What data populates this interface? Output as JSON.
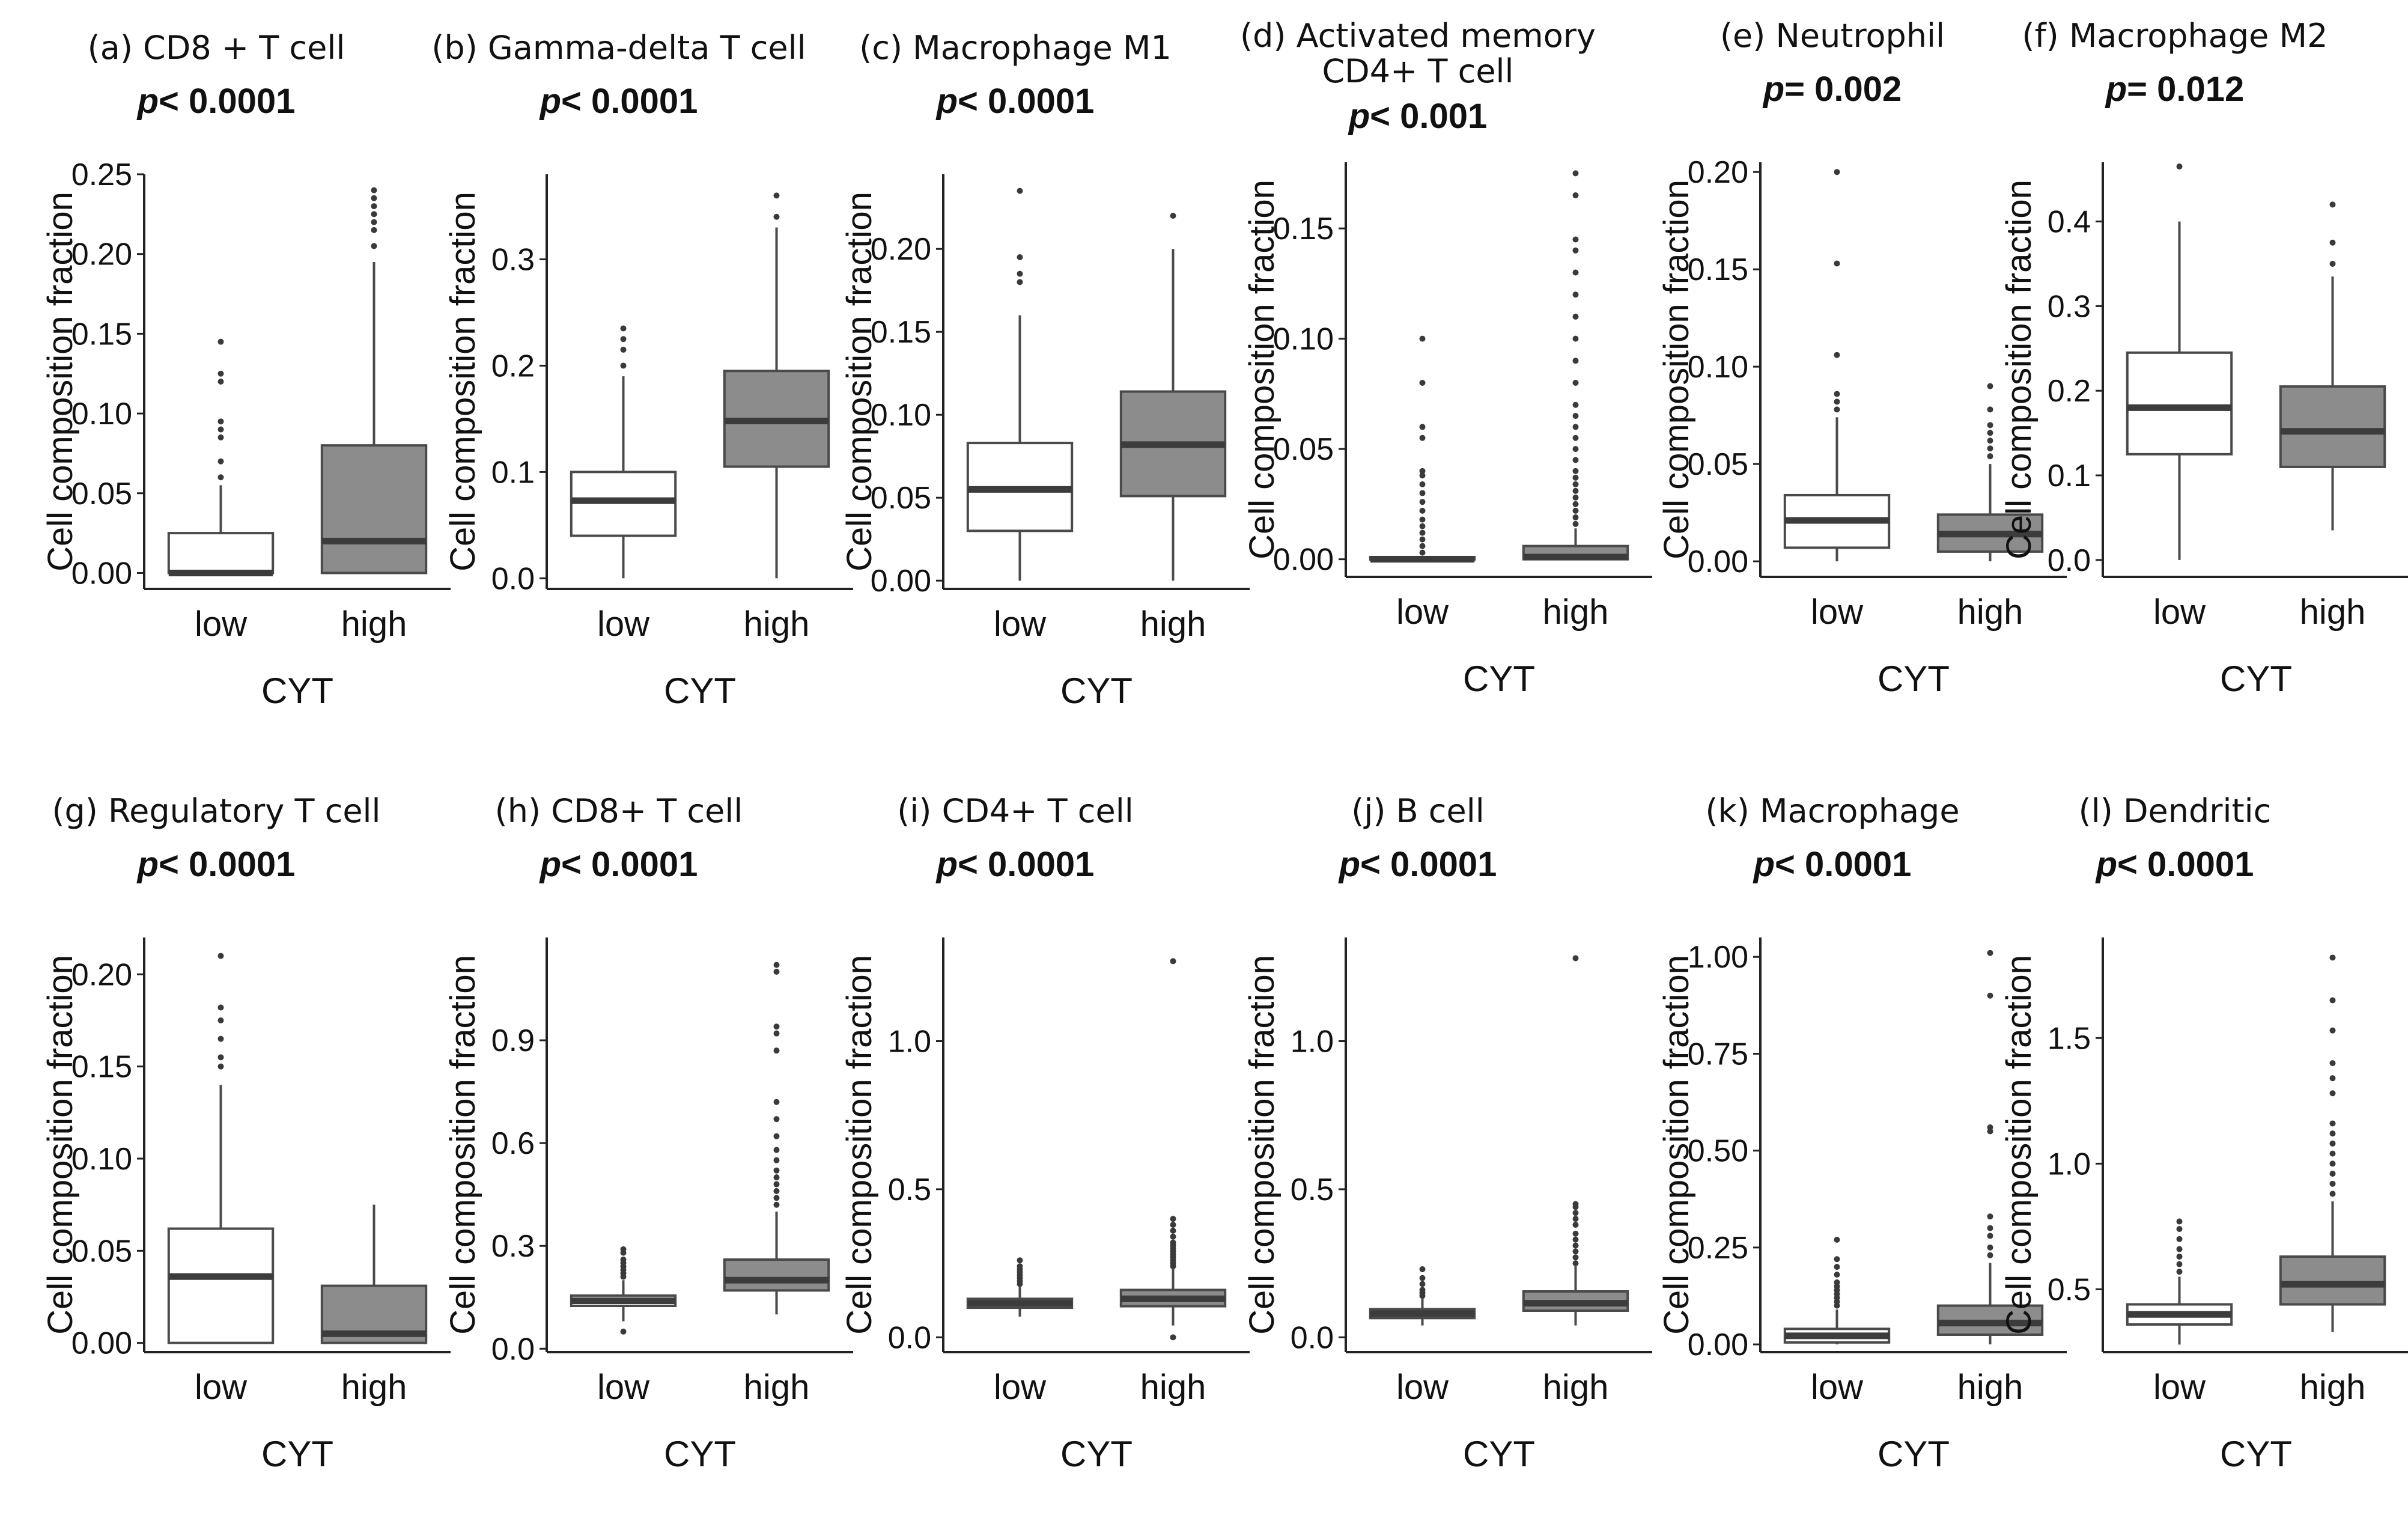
{
  "figure": {
    "x_axis_label": "CYT",
    "y_axis_label": "Cell composition fraction"
  },
  "chart_data": [
    {
      "id": "a",
      "type": "boxplot",
      "title": "(a) CD8 + T cell",
      "p_prefix": "p",
      "p_text": "< 0.0001",
      "categories": [
        "low",
        "high"
      ],
      "ylim": [
        -0.01,
        0.25
      ],
      "yticks": [
        0.0,
        0.05,
        0.1,
        0.15,
        0.2,
        0.25
      ],
      "ytick_labels": [
        "0.00",
        "0.05",
        "0.10",
        "0.15",
        "0.20",
        "0.25"
      ],
      "xlabel": "CYT",
      "ylabel": "Cell composition fraction",
      "series": [
        {
          "name": "low",
          "q1": 0.0,
          "median": 0.0,
          "q3": 0.025,
          "whisker_low": 0.0,
          "whisker_high": 0.055,
          "outliers": [
            0.06,
            0.07,
            0.085,
            0.09,
            0.095,
            0.12,
            0.125,
            0.145
          ],
          "fill": "#ffffff"
        },
        {
          "name": "high",
          "q1": 0.0,
          "median": 0.02,
          "q3": 0.08,
          "whisker_low": 0.0,
          "whisker_high": 0.195,
          "outliers": [
            0.205,
            0.215,
            0.22,
            0.225,
            0.23,
            0.235,
            0.24
          ],
          "fill": "#8c8c8c"
        }
      ]
    },
    {
      "id": "b",
      "type": "boxplot",
      "title": "(b) Gamma-delta T cell",
      "p_prefix": "p",
      "p_text": "< 0.0001",
      "categories": [
        "low",
        "high"
      ],
      "ylim": [
        -0.01,
        0.38
      ],
      "yticks": [
        0.0,
        0.1,
        0.2,
        0.3
      ],
      "ytick_labels": [
        "0.0",
        "0.1",
        "0.2",
        "0.3"
      ],
      "xlabel": "CYT",
      "ylabel": "Cell composition fraction",
      "series": [
        {
          "name": "low",
          "q1": 0.04,
          "median": 0.073,
          "q3": 0.1,
          "whisker_low": 0.0,
          "whisker_high": 0.19,
          "outliers": [
            0.2,
            0.215,
            0.225,
            0.235
          ],
          "fill": "#ffffff"
        },
        {
          "name": "high",
          "q1": 0.105,
          "median": 0.148,
          "q3": 0.195,
          "whisker_low": 0.0,
          "whisker_high": 0.33,
          "outliers": [
            0.34,
            0.36
          ],
          "fill": "#8c8c8c"
        }
      ]
    },
    {
      "id": "c",
      "type": "boxplot",
      "title": "(c) Macrophage M1",
      "p_prefix": "p",
      "p_text": "< 0.0001",
      "categories": [
        "low",
        "high"
      ],
      "ylim": [
        -0.005,
        0.245
      ],
      "yticks": [
        0.0,
        0.05,
        0.1,
        0.15,
        0.2
      ],
      "ytick_labels": [
        "0.00",
        "0.05",
        "0.10",
        "0.15",
        "0.20"
      ],
      "xlabel": "CYT",
      "ylabel": "Cell composition fraction",
      "series": [
        {
          "name": "low",
          "q1": 0.03,
          "median": 0.055,
          "q3": 0.083,
          "whisker_low": 0.0,
          "whisker_high": 0.16,
          "outliers": [
            0.18,
            0.185,
            0.195,
            0.235
          ],
          "fill": "#ffffff"
        },
        {
          "name": "high",
          "q1": 0.051,
          "median": 0.082,
          "q3": 0.114,
          "whisker_low": 0.0,
          "whisker_high": 0.2,
          "outliers": [
            0.22
          ],
          "fill": "#8c8c8c"
        }
      ]
    },
    {
      "id": "d",
      "type": "boxplot",
      "title": "(d) Activated memory",
      "title2": "CD4+ T cell",
      "p_prefix": "p",
      "p_text": "< 0.001",
      "categories": [
        "low",
        "high"
      ],
      "ylim": [
        -0.008,
        0.18
      ],
      "yticks": [
        0.0,
        0.05,
        0.1,
        0.15
      ],
      "ytick_labels": [
        "0.00",
        "0.05",
        "0.10",
        "0.15"
      ],
      "xlabel": "CYT",
      "ylabel": "Cell composition fraction",
      "series": [
        {
          "name": "low",
          "q1": 0.0,
          "median": 0.0,
          "q3": 0.001,
          "whisker_low": 0.0,
          "whisker_high": 0.001,
          "outliers": [
            0.003,
            0.006,
            0.009,
            0.012,
            0.015,
            0.018,
            0.022,
            0.026,
            0.03,
            0.034,
            0.038,
            0.04,
            0.055,
            0.06,
            0.08,
            0.1
          ],
          "fill": "#ffffff"
        },
        {
          "name": "high",
          "q1": 0.0,
          "median": 0.001,
          "q3": 0.006,
          "whisker_low": 0.0,
          "whisker_high": 0.014,
          "outliers": [
            0.016,
            0.019,
            0.022,
            0.025,
            0.028,
            0.031,
            0.034,
            0.037,
            0.04,
            0.045,
            0.05,
            0.055,
            0.06,
            0.065,
            0.07,
            0.08,
            0.09,
            0.1,
            0.11,
            0.12,
            0.13,
            0.14,
            0.145,
            0.165,
            0.175
          ],
          "fill": "#8c8c8c"
        }
      ]
    },
    {
      "id": "e",
      "type": "boxplot",
      "title": "(e) Neutrophil",
      "p_prefix": "p",
      "p_text": "= 0.002",
      "categories": [
        "low",
        "high"
      ],
      "ylim": [
        -0.008,
        0.205
      ],
      "yticks": [
        0.0,
        0.05,
        0.1,
        0.15,
        0.2
      ],
      "ytick_labels": [
        "0.00",
        "0.05",
        "0.10",
        "0.15",
        "0.20"
      ],
      "xlabel": "CYT",
      "ylabel": "Cell composition fraction",
      "series": [
        {
          "name": "low",
          "q1": 0.007,
          "median": 0.021,
          "q3": 0.034,
          "whisker_low": 0.0,
          "whisker_high": 0.074,
          "outliers": [
            0.078,
            0.082,
            0.086,
            0.106,
            0.153,
            0.2
          ],
          "fill": "#ffffff"
        },
        {
          "name": "high",
          "q1": 0.005,
          "median": 0.014,
          "q3": 0.024,
          "whisker_low": 0.0,
          "whisker_high": 0.05,
          "outliers": [
            0.054,
            0.058,
            0.062,
            0.066,
            0.07,
            0.078,
            0.09
          ],
          "fill": "#8c8c8c"
        }
      ]
    },
    {
      "id": "f",
      "type": "boxplot",
      "title": "(f) Macrophage M2",
      "p_prefix": "p",
      "p_text": "= 0.012",
      "categories": [
        "low",
        "high"
      ],
      "ylim": [
        -0.02,
        0.47
      ],
      "yticks": [
        0.0,
        0.1,
        0.2,
        0.3,
        0.4
      ],
      "ytick_labels": [
        "0.0",
        "0.1",
        "0.2",
        "0.3",
        "0.4"
      ],
      "xlabel": "CYT",
      "ylabel": "Cell composition fraction",
      "series": [
        {
          "name": "low",
          "q1": 0.125,
          "median": 0.18,
          "q3": 0.245,
          "whisker_low": 0.0,
          "whisker_high": 0.4,
          "outliers": [
            0.465
          ],
          "fill": "#ffffff"
        },
        {
          "name": "high",
          "q1": 0.11,
          "median": 0.152,
          "q3": 0.205,
          "whisker_low": 0.035,
          "whisker_high": 0.335,
          "outliers": [
            0.35,
            0.375,
            0.42
          ],
          "fill": "#8c8c8c"
        }
      ]
    },
    {
      "id": "g",
      "type": "boxplot",
      "title": "(g) Regulatory T cell",
      "p_prefix": "p",
      "p_text": "< 0.0001",
      "categories": [
        "low",
        "high"
      ],
      "ylim": [
        -0.005,
        0.22
      ],
      "yticks": [
        0.0,
        0.05,
        0.1,
        0.15,
        0.2
      ],
      "ytick_labels": [
        "0.00",
        "0.05",
        "0.10",
        "0.15",
        "0.20"
      ],
      "xlabel": "CYT",
      "ylabel": "Cell composition fraction",
      "series": [
        {
          "name": "low",
          "q1": 0.0,
          "median": 0.036,
          "q3": 0.062,
          "whisker_low": 0.0,
          "whisker_high": 0.14,
          "outliers": [
            0.15,
            0.155,
            0.165,
            0.175,
            0.182,
            0.21
          ],
          "fill": "#ffffff"
        },
        {
          "name": "high",
          "q1": 0.0,
          "median": 0.005,
          "q3": 0.031,
          "whisker_low": 0.0,
          "whisker_high": 0.075,
          "outliers": [],
          "fill": "#8c8c8c"
        }
      ]
    },
    {
      "id": "h",
      "type": "boxplot",
      "title": "(h) CD8+ T cell",
      "p_prefix": "p",
      "p_text": "< 0.0001",
      "categories": [
        "low",
        "high"
      ],
      "ylim": [
        -0.01,
        1.2
      ],
      "yticks": [
        0.0,
        0.3,
        0.6,
        0.9
      ],
      "ytick_labels": [
        "0.0",
        "0.3",
        "0.6",
        "0.9"
      ],
      "xlabel": "CYT",
      "ylabel": "Cell composition fraction",
      "series": [
        {
          "name": "low",
          "q1": 0.125,
          "median": 0.14,
          "q3": 0.155,
          "whisker_low": 0.08,
          "whisker_high": 0.2,
          "outliers": [
            0.05,
            0.21,
            0.22,
            0.23,
            0.24,
            0.25,
            0.26,
            0.28,
            0.29
          ],
          "fill": "#ffffff"
        },
        {
          "name": "high",
          "q1": 0.17,
          "median": 0.2,
          "q3": 0.26,
          "whisker_low": 0.1,
          "whisker_high": 0.4,
          "outliers": [
            0.42,
            0.44,
            0.46,
            0.48,
            0.5,
            0.52,
            0.55,
            0.58,
            0.62,
            0.67,
            0.72,
            0.87,
            0.92,
            0.94,
            1.1,
            1.12
          ],
          "fill": "#8c8c8c"
        }
      ]
    },
    {
      "id": "i",
      "type": "boxplot",
      "title": "(i) CD4+ T cell",
      "p_prefix": "p",
      "p_text": "< 0.0001",
      "categories": [
        "low",
        "high"
      ],
      "ylim": [
        -0.05,
        1.35
      ],
      "yticks": [
        0.0,
        0.5,
        1.0
      ],
      "ytick_labels": [
        "0.0",
        "0.5",
        "1.0"
      ],
      "xlabel": "CYT",
      "ylabel": "Cell composition fraction",
      "series": [
        {
          "name": "low",
          "q1": 0.1,
          "median": 0.115,
          "q3": 0.13,
          "whisker_low": 0.07,
          "whisker_high": 0.17,
          "outliers": [
            0.18,
            0.19,
            0.2,
            0.21,
            0.22,
            0.23,
            0.24,
            0.26
          ],
          "fill": "#ffffff"
        },
        {
          "name": "high",
          "q1": 0.105,
          "median": 0.13,
          "q3": 0.16,
          "whisker_low": 0.04,
          "whisker_high": 0.23,
          "outliers": [
            0.0,
            0.24,
            0.25,
            0.26,
            0.27,
            0.28,
            0.29,
            0.3,
            0.31,
            0.32,
            0.34,
            0.36,
            0.38,
            0.4,
            1.27
          ],
          "fill": "#8c8c8c"
        }
      ]
    },
    {
      "id": "j",
      "type": "boxplot",
      "title": "(j) B cell",
      "p_prefix": "p",
      "p_text": "< 0.0001",
      "categories": [
        "low",
        "high"
      ],
      "ylim": [
        -0.05,
        1.35
      ],
      "yticks": [
        0.0,
        0.5,
        1.0
      ],
      "ytick_labels": [
        "0.0",
        "0.5",
        "1.0"
      ],
      "xlabel": "CYT",
      "ylabel": "Cell composition fraction",
      "series": [
        {
          "name": "low",
          "q1": 0.065,
          "median": 0.08,
          "q3": 0.095,
          "whisker_low": 0.04,
          "whisker_high": 0.13,
          "outliers": [
            0.14,
            0.15,
            0.16,
            0.18,
            0.2,
            0.23
          ],
          "fill": "#ffffff"
        },
        {
          "name": "high",
          "q1": 0.09,
          "median": 0.115,
          "q3": 0.155,
          "whisker_low": 0.04,
          "whisker_high": 0.24,
          "outliers": [
            0.25,
            0.27,
            0.29,
            0.31,
            0.33,
            0.35,
            0.38,
            0.4,
            0.42,
            0.44,
            0.45,
            1.28
          ],
          "fill": "#8c8c8c"
        }
      ]
    },
    {
      "id": "k",
      "type": "boxplot",
      "title": "(k) Macrophage",
      "p_prefix": "p",
      "p_text": "< 0.0001",
      "categories": [
        "low",
        "high"
      ],
      "ylim": [
        -0.02,
        1.05
      ],
      "yticks": [
        0.0,
        0.25,
        0.5,
        0.75,
        1.0
      ],
      "ytick_labels": [
        "0.00",
        "0.25",
        "0.50",
        "0.75",
        "1.00"
      ],
      "xlabel": "CYT",
      "ylabel": "Cell composition fraction",
      "series": [
        {
          "name": "low",
          "q1": 0.005,
          "median": 0.022,
          "q3": 0.04,
          "whisker_low": 0.0,
          "whisker_high": 0.09,
          "outliers": [
            0.1,
            0.11,
            0.12,
            0.13,
            0.14,
            0.15,
            0.16,
            0.18,
            0.2,
            0.22,
            0.27
          ],
          "fill": "#ffffff"
        },
        {
          "name": "high",
          "q1": 0.025,
          "median": 0.055,
          "q3": 0.1,
          "whisker_low": 0.0,
          "whisker_high": 0.21,
          "outliers": [
            0.23,
            0.25,
            0.28,
            0.3,
            0.33,
            0.55,
            0.56,
            0.9,
            1.01
          ],
          "fill": "#8c8c8c"
        }
      ]
    },
    {
      "id": "l",
      "type": "boxplot",
      "title": "(l) Dendritic",
      "p_prefix": "p",
      "p_text": "< 0.0001",
      "categories": [
        "low",
        "high"
      ],
      "ylim": [
        0.25,
        1.9
      ],
      "yticks": [
        0.5,
        1.0,
        1.5
      ],
      "ytick_labels": [
        "0.5",
        "1.0",
        "1.5"
      ],
      "xlabel": "CYT",
      "ylabel": "Cell composition fraction",
      "series": [
        {
          "name": "low",
          "q1": 0.36,
          "median": 0.4,
          "q3": 0.44,
          "whisker_low": 0.28,
          "whisker_high": 0.55,
          "outliers": [
            0.57,
            0.6,
            0.63,
            0.66,
            0.7,
            0.74,
            0.77
          ],
          "fill": "#ffffff"
        },
        {
          "name": "high",
          "q1": 0.44,
          "median": 0.52,
          "q3": 0.63,
          "whisker_low": 0.33,
          "whisker_high": 0.85,
          "outliers": [
            0.88,
            0.92,
            0.96,
            1.0,
            1.04,
            1.08,
            1.12,
            1.16,
            1.28,
            1.34,
            1.4,
            1.53,
            1.65,
            1.82
          ],
          "fill": "#8c8c8c"
        }
      ]
    }
  ]
}
